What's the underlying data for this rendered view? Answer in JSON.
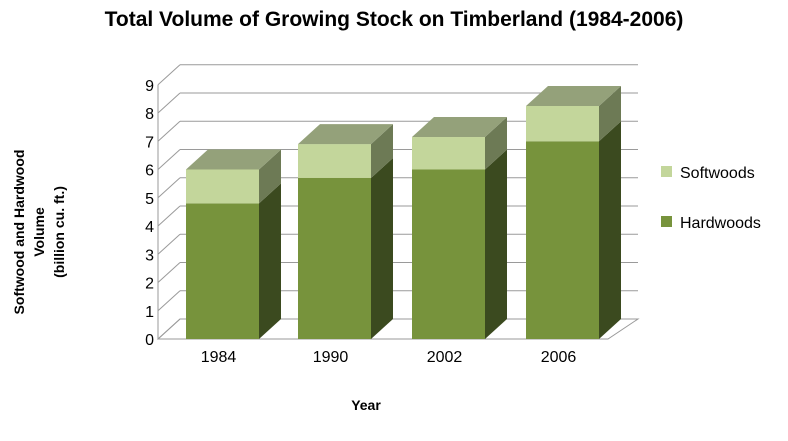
{
  "chart_data": {
    "type": "bar",
    "stacked": true,
    "three_d": true,
    "title": "Total Volume of Growing Stock on Timberland (1984-2006)",
    "xlabel": "Year",
    "ylabel_lines": [
      "Softwood and Hardwood",
      "Volume",
      "(billion cu. ft.)"
    ],
    "categories": [
      "1984",
      "1990",
      "2002",
      "2006"
    ],
    "series": [
      {
        "name": "Hardwoods",
        "values": [
          4.8,
          5.7,
          6.0,
          7.0
        ],
        "color": "#77933c",
        "side_color": "#3b4a1f",
        "top_color": "#8c9e6e"
      },
      {
        "name": "Softwoods",
        "values": [
          1.2,
          1.2,
          1.15,
          1.25
        ],
        "color": "#c3d69b",
        "side_color": "#6d7a55",
        "top_color": "#94a17a"
      }
    ],
    "ylim": [
      0,
      9
    ],
    "yticks": [
      "0",
      "1",
      "2",
      "3",
      "4",
      "5",
      "6",
      "7",
      "8",
      "9"
    ],
    "grid": true,
    "legend_placement": "right",
    "legend": [
      "Softwoods",
      "Hardwoods"
    ]
  }
}
